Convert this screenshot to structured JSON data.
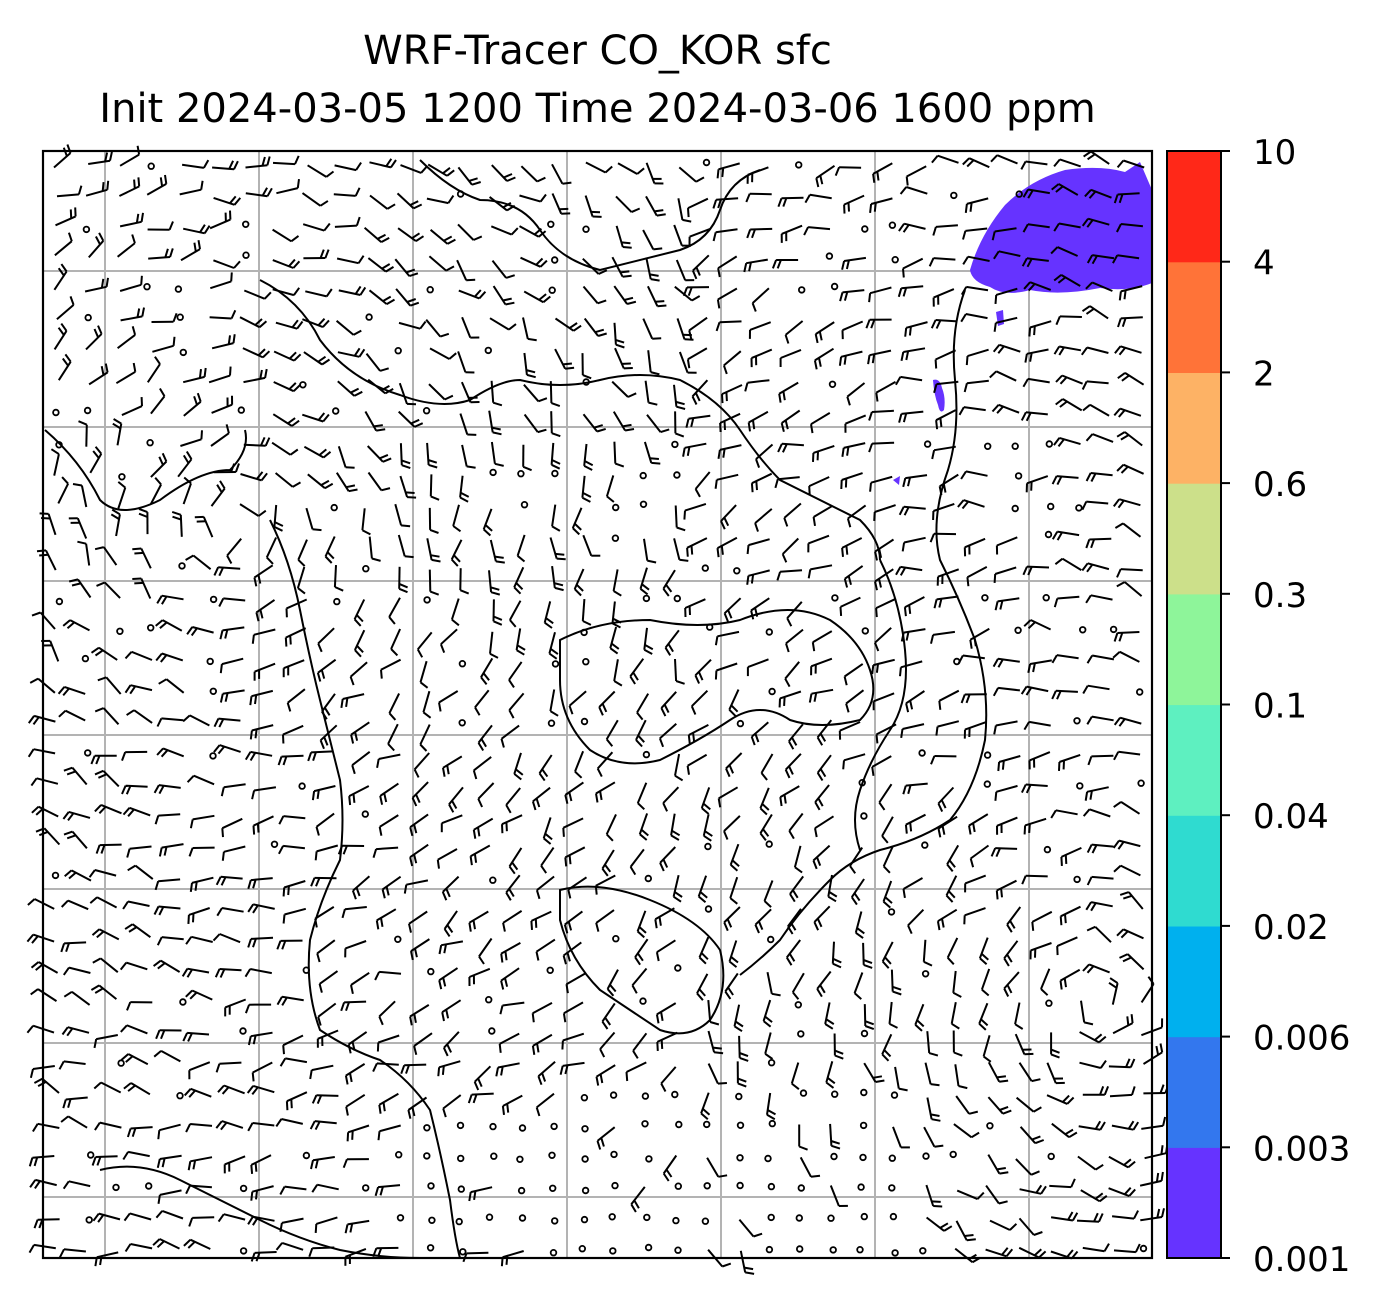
{
  "chart_data": {
    "type": "heatmap",
    "title_line1": "WRF-Tracer CO_KOR sfc",
    "title_line2": "Init 2024-03-05 1200 Time 2024-03-06 1600 ppm",
    "colorbar": {
      "levels": [
        "0.001",
        "0.003",
        "0.006",
        "0.02",
        "0.04",
        "0.1",
        "0.3",
        "0.6",
        "2",
        "4",
        "10"
      ],
      "colors": [
        "#6633ff",
        "#3377ee",
        "#00b0ee",
        "#2fdbd0",
        "#5ef0c0",
        "#8ef59a",
        "#cce08a",
        "#fdb265",
        "#ff7338",
        "#ff2818"
      ]
    },
    "grid": true,
    "field": "surface CO tracer concentration with 10 m wind barbs; only the lowest band (0.001–0.003 ppm) appears, over the top-right corner"
  },
  "colors": {
    "frame": "#000000",
    "gridline": "#b3b3b3",
    "lowest_band": "#6633ff"
  }
}
